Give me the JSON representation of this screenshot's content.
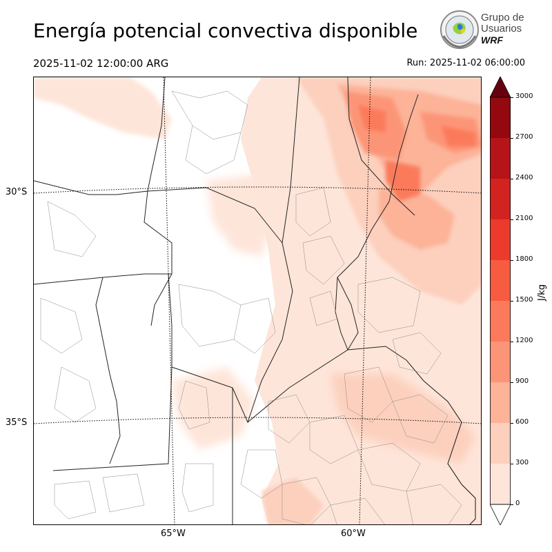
{
  "header": {
    "title": "Energía potencial convectiva disponible",
    "valid_time": "2025-11-02 12:00:00 ARG",
    "run_time": "Run: 2025-11-02 06:00:00"
  },
  "logo": {
    "line1": "Grupo de",
    "line2": "Usuarios",
    "line3": "WRF"
  },
  "map": {
    "lat_labels": [
      "30°S",
      "35°S"
    ],
    "lon_labels": [
      "65°W",
      "60°W"
    ]
  },
  "colorbar": {
    "unit": "J/kg",
    "ticks": [
      "0",
      "300",
      "600",
      "900",
      "1200",
      "1500",
      "1800",
      "2100",
      "2400",
      "2700",
      "3000"
    ],
    "colors": [
      "#fee5d9",
      "#fcd0bd",
      "#fcb398",
      "#fc9577",
      "#fb7a5b",
      "#f75c40",
      "#ec3b2d",
      "#d22321",
      "#b61419",
      "#93090f",
      "#760611"
    ],
    "extend_color": "#67000d"
  }
}
